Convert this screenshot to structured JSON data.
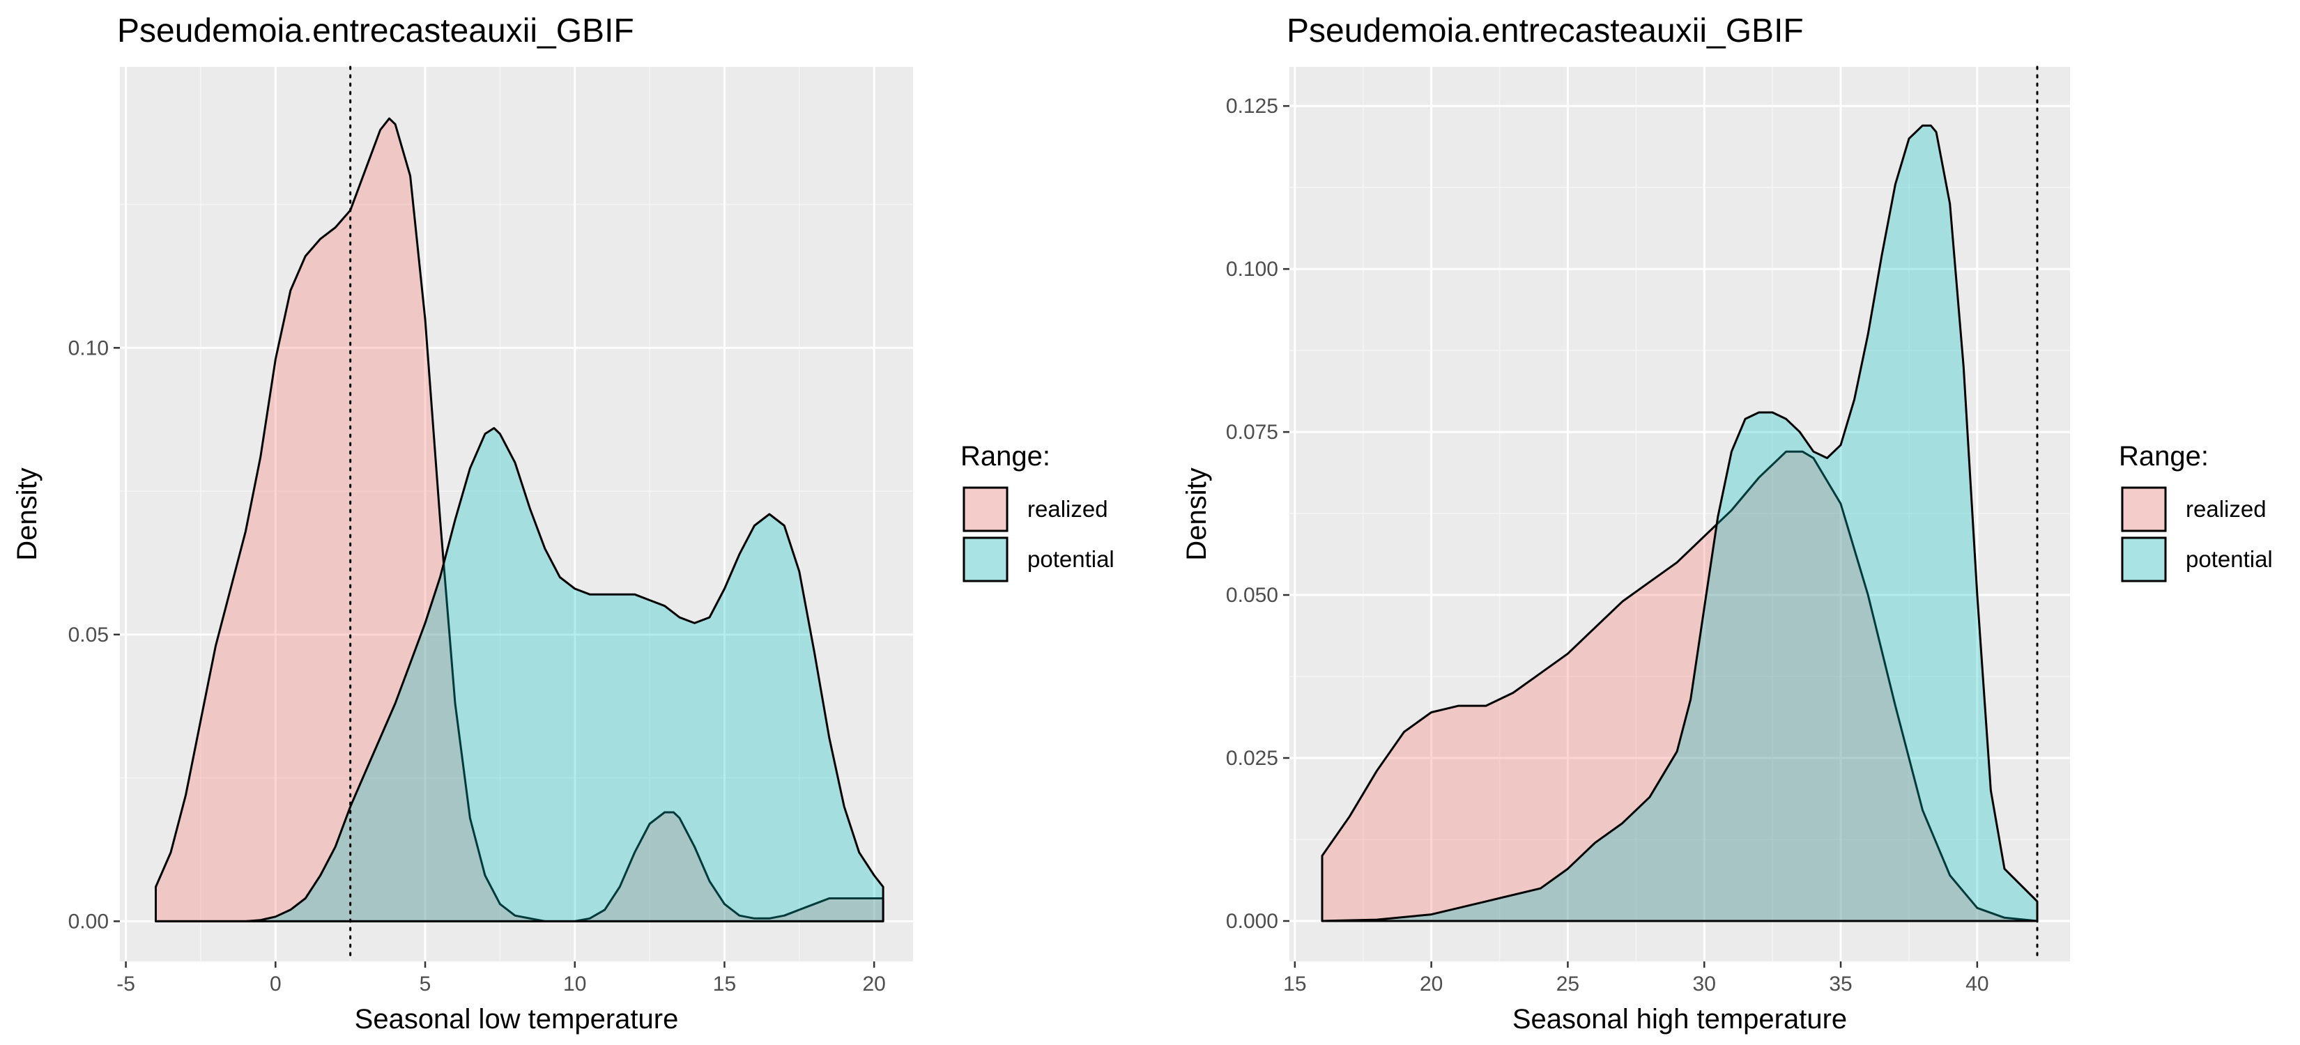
{
  "chart_data": [
    {
      "type": "area",
      "title": "Pseudemoia.entrecasteauxii_GBIF",
      "xlabel": "Seasonal low temperature",
      "ylabel": "Density",
      "xlim": [
        -5.2,
        21.3
      ],
      "ylim": [
        -0.007,
        0.149
      ],
      "x_ticks": [
        -5,
        0,
        5,
        10,
        15,
        20
      ],
      "y_ticks": [
        0.0,
        0.05,
        0.1
      ],
      "y_tick_labels": [
        "0.00",
        "0.05",
        "0.10"
      ],
      "grid": true,
      "vline": 2.5,
      "legend": {
        "title": "Range:",
        "position": "right",
        "entries": [
          "realized",
          "potential"
        ]
      },
      "series": [
        {
          "name": "realized",
          "color": "#F8766D",
          "x": [
            -4.0,
            -3.5,
            -3.0,
            -2.5,
            -2.0,
            -1.5,
            -1.0,
            -0.5,
            0.0,
            0.5,
            1.0,
            1.5,
            2.0,
            2.5,
            3.0,
            3.5,
            3.8,
            4.0,
            4.5,
            5.0,
            5.5,
            6.0,
            6.5,
            7.0,
            7.5,
            8.0,
            9.0,
            10.0,
            10.5,
            11.0,
            11.5,
            12.0,
            12.5,
            13.0,
            13.3,
            13.5,
            14.0,
            14.5,
            15.0,
            15.5,
            16.0,
            16.5,
            17.0,
            17.5,
            18.0,
            18.5,
            19.0,
            19.5,
            20.3
          ],
          "y": [
            0.006,
            0.012,
            0.022,
            0.035,
            0.048,
            0.058,
            0.068,
            0.081,
            0.098,
            0.11,
            0.116,
            0.119,
            0.121,
            0.124,
            0.131,
            0.138,
            0.14,
            0.139,
            0.13,
            0.105,
            0.07,
            0.038,
            0.018,
            0.008,
            0.003,
            0.001,
            0.0,
            0.0,
            0.0005,
            0.002,
            0.006,
            0.012,
            0.017,
            0.019,
            0.019,
            0.018,
            0.013,
            0.007,
            0.003,
            0.001,
            0.0005,
            0.0005,
            0.001,
            0.002,
            0.003,
            0.004,
            0.004,
            0.004,
            0.004
          ]
        },
        {
          "name": "potential",
          "color": "#00BFC4",
          "x": [
            -4.0,
            -3.0,
            -2.0,
            -1.0,
            -0.5,
            0.0,
            0.5,
            1.0,
            1.5,
            2.0,
            2.5,
            3.0,
            3.5,
            4.0,
            4.5,
            5.0,
            5.5,
            6.0,
            6.5,
            7.0,
            7.3,
            7.5,
            8.0,
            8.5,
            9.0,
            9.5,
            10.0,
            10.5,
            11.0,
            11.5,
            12.0,
            12.5,
            13.0,
            13.5,
            14.0,
            14.5,
            15.0,
            15.5,
            16.0,
            16.5,
            17.0,
            17.5,
            18.0,
            18.5,
            19.0,
            19.5,
            20.0,
            20.3
          ],
          "y": [
            0.0,
            0.0,
            0.0,
            0.0,
            0.0002,
            0.0008,
            0.002,
            0.004,
            0.008,
            0.013,
            0.02,
            0.026,
            0.032,
            0.038,
            0.045,
            0.052,
            0.06,
            0.07,
            0.079,
            0.085,
            0.086,
            0.085,
            0.08,
            0.072,
            0.065,
            0.06,
            0.058,
            0.057,
            0.057,
            0.057,
            0.057,
            0.056,
            0.055,
            0.053,
            0.052,
            0.053,
            0.058,
            0.064,
            0.069,
            0.071,
            0.069,
            0.061,
            0.047,
            0.032,
            0.02,
            0.012,
            0.008,
            0.006
          ]
        }
      ]
    },
    {
      "type": "area",
      "title": "Pseudemoia.entrecasteauxii_GBIF",
      "xlabel": "Seasonal high temperature",
      "ylabel": "Density",
      "xlim": [
        14.8,
        43.4
      ],
      "ylim": [
        -0.0062,
        0.131
      ],
      "x_ticks": [
        15,
        20,
        25,
        30,
        35,
        40
      ],
      "y_ticks": [
        0.0,
        0.025,
        0.05,
        0.075,
        0.1,
        0.125
      ],
      "y_tick_labels": [
        "0.000",
        "0.025",
        "0.050",
        "0.075",
        "0.100",
        "0.125"
      ],
      "grid": true,
      "vline": 42.2,
      "legend": {
        "title": "Range:",
        "position": "right",
        "entries": [
          "realized",
          "potential"
        ]
      },
      "series": [
        {
          "name": "realized",
          "color": "#F8766D",
          "x": [
            16.0,
            17.0,
            18.0,
            19.0,
            20.0,
            21.0,
            22.0,
            23.0,
            24.0,
            25.0,
            26.0,
            27.0,
            28.0,
            29.0,
            30.0,
            31.0,
            32.0,
            33.0,
            33.6,
            34.0,
            35.0,
            36.0,
            37.0,
            38.0,
            39.0,
            40.0,
            41.0,
            42.2
          ],
          "y": [
            0.01,
            0.016,
            0.023,
            0.029,
            0.032,
            0.033,
            0.033,
            0.035,
            0.038,
            0.041,
            0.045,
            0.049,
            0.052,
            0.055,
            0.059,
            0.063,
            0.068,
            0.072,
            0.072,
            0.071,
            0.064,
            0.05,
            0.033,
            0.017,
            0.007,
            0.002,
            0.0005,
            0.0
          ]
        },
        {
          "name": "potential",
          "color": "#00BFC4",
          "x": [
            16.0,
            18.0,
            20.0,
            22.0,
            24.0,
            25.0,
            26.0,
            27.0,
            28.0,
            29.0,
            29.5,
            30.0,
            30.5,
            31.0,
            31.5,
            32.0,
            32.5,
            33.0,
            33.5,
            34.0,
            34.5,
            35.0,
            35.5,
            36.0,
            36.5,
            37.0,
            37.5,
            38.0,
            38.3,
            38.5,
            39.0,
            39.5,
            40.0,
            40.5,
            41.0,
            42.2
          ],
          "y": [
            0.0,
            0.0002,
            0.001,
            0.003,
            0.005,
            0.008,
            0.012,
            0.015,
            0.019,
            0.026,
            0.034,
            0.048,
            0.062,
            0.072,
            0.077,
            0.078,
            0.078,
            0.077,
            0.075,
            0.072,
            0.071,
            0.073,
            0.08,
            0.09,
            0.102,
            0.113,
            0.12,
            0.122,
            0.122,
            0.121,
            0.11,
            0.085,
            0.05,
            0.02,
            0.008,
            0.003
          ]
        }
      ]
    }
  ]
}
